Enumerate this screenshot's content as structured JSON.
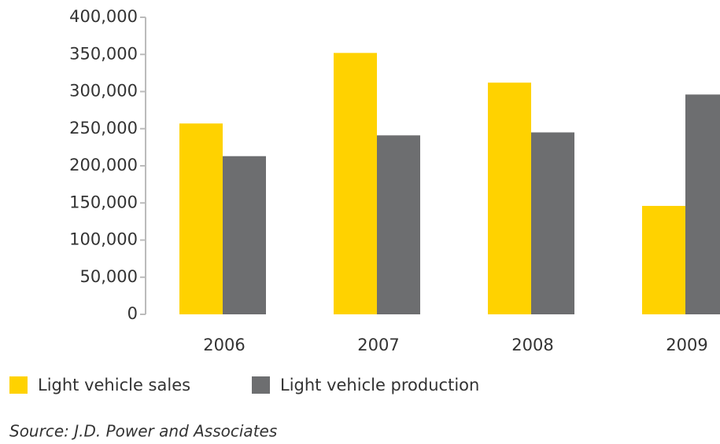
{
  "chart_data": {
    "type": "bar",
    "categories": [
      "2006",
      "2007",
      "2008",
      "2009"
    ],
    "series": [
      {
        "name": "Light vehicle sales",
        "color": "#ffd200",
        "values": [
          257000,
          352000,
          312000,
          146000
        ]
      },
      {
        "name": "Light vehicle production",
        "color": "#6d6e70",
        "values": [
          213000,
          241000,
          245000,
          296000
        ]
      }
    ],
    "ylim": [
      0,
      400000
    ],
    "yticks": [
      0,
      {
        "value": 50000,
        "label": "50,000"
      },
      {
        "value": 100000,
        "label": "100,000"
      },
      {
        "value": 150000,
        "label": "150,000"
      },
      {
        "value": 200000,
        "label": "200,000"
      },
      {
        "value": 250000,
        "label": "250,000"
      },
      {
        "value": 300000,
        "label": "300,000"
      },
      {
        "value": 350000,
        "label": "350,000"
      },
      {
        "value": 400000,
        "label": "400,000"
      }
    ],
    "legend": "bottom-left",
    "source": "Source: J.D. Power and Associates"
  }
}
